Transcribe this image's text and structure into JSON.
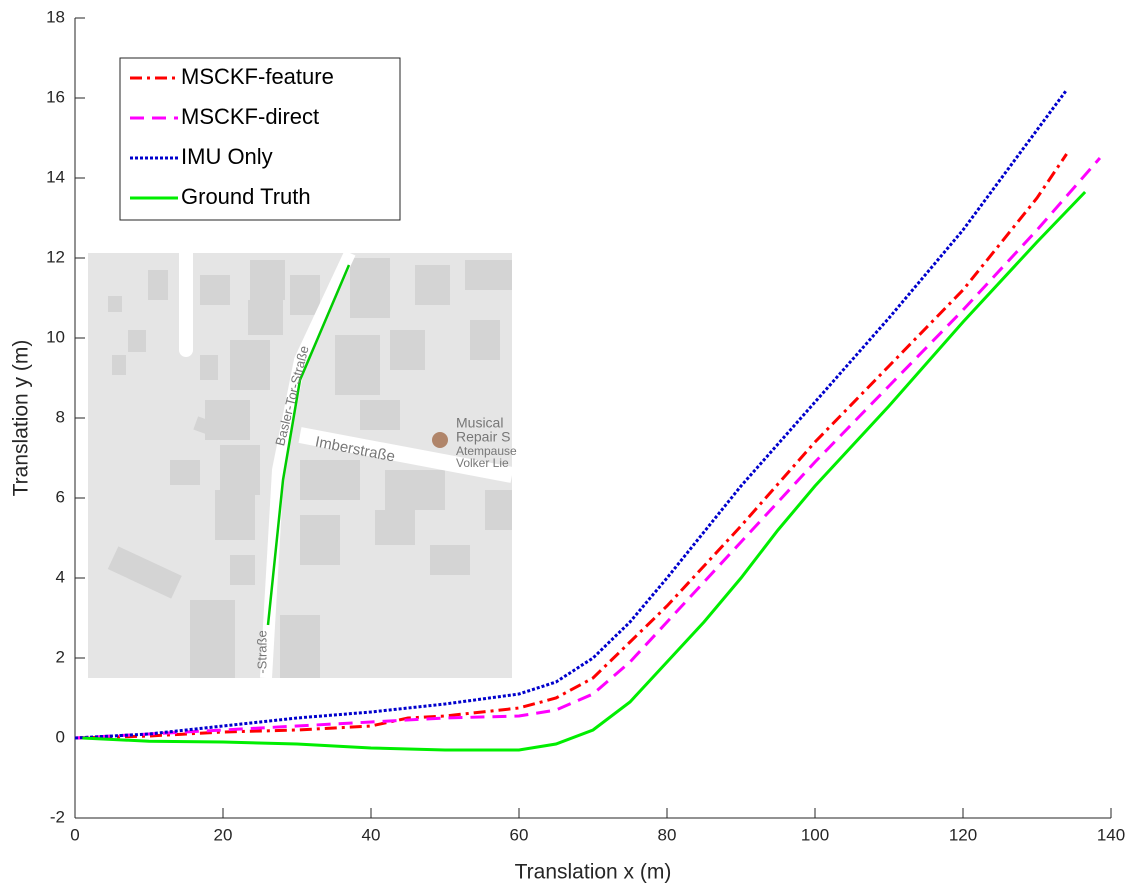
{
  "chart_data": {
    "type": "line",
    "xlabel": "Translation x (m)",
    "ylabel": "Translation y (m)",
    "xlim": [
      0,
      140
    ],
    "xticks": [
      0,
      20,
      40,
      60,
      80,
      100,
      120,
      140
    ],
    "ylim": [
      -2,
      18
    ],
    "yticks": [
      -2,
      0,
      2,
      4,
      6,
      8,
      10,
      12,
      14,
      16,
      18
    ],
    "legend": "upper left",
    "series": [
      {
        "name": "MSCKF-feature",
        "color": "#ff0000",
        "style": "dashdot",
        "x": [
          0,
          10,
          20,
          30,
          40,
          45,
          50,
          60,
          65,
          70,
          75,
          80,
          90,
          100,
          110,
          120,
          130,
          134
        ],
        "values": [
          0,
          0.05,
          0.15,
          0.2,
          0.3,
          0.5,
          0.55,
          0.75,
          1.0,
          1.5,
          2.4,
          3.3,
          5.3,
          7.4,
          9.3,
          11.2,
          13.5,
          14.6
        ]
      },
      {
        "name": "MSCKF-direct",
        "color": "#ff00ff",
        "style": "dashed",
        "x": [
          0,
          10,
          20,
          30,
          40,
          50,
          60,
          65,
          70,
          75,
          80,
          90,
          100,
          110,
          120,
          130,
          138.5
        ],
        "values": [
          0,
          0.1,
          0.2,
          0.3,
          0.4,
          0.5,
          0.55,
          0.7,
          1.1,
          1.9,
          2.9,
          4.9,
          6.9,
          8.8,
          10.7,
          12.7,
          14.5
        ]
      },
      {
        "name": "IMU Only",
        "color": "#0000cc",
        "style": "dotted",
        "x": [
          0,
          10,
          20,
          30,
          40,
          50,
          60,
          65,
          70,
          75,
          80,
          90,
          100,
          110,
          120,
          125,
          134
        ],
        "values": [
          0,
          0.1,
          0.3,
          0.5,
          0.65,
          0.85,
          1.1,
          1.4,
          2.0,
          2.9,
          4.0,
          6.3,
          8.4,
          10.5,
          12.7,
          13.95,
          16.2
        ]
      },
      {
        "name": "Ground Truth",
        "color": "#00ee00",
        "style": "solid",
        "x": [
          1,
          10,
          20,
          30,
          40,
          50,
          60,
          65,
          70,
          75,
          80,
          85,
          90,
          95,
          100,
          110,
          120,
          130,
          136.5
        ],
        "values": [
          0,
          -0.08,
          -0.1,
          -0.15,
          -0.25,
          -0.3,
          -0.3,
          -0.15,
          0.2,
          0.9,
          1.9,
          2.9,
          4.0,
          5.2,
          6.3,
          8.3,
          10.4,
          12.4,
          13.65
        ]
      }
    ],
    "inset_map_labels": [
      "Basler-Tor-Straße",
      "Imberstraße",
      "Musical",
      "Repair S",
      "Atempause",
      "Volker Lie",
      "-Straße"
    ]
  }
}
